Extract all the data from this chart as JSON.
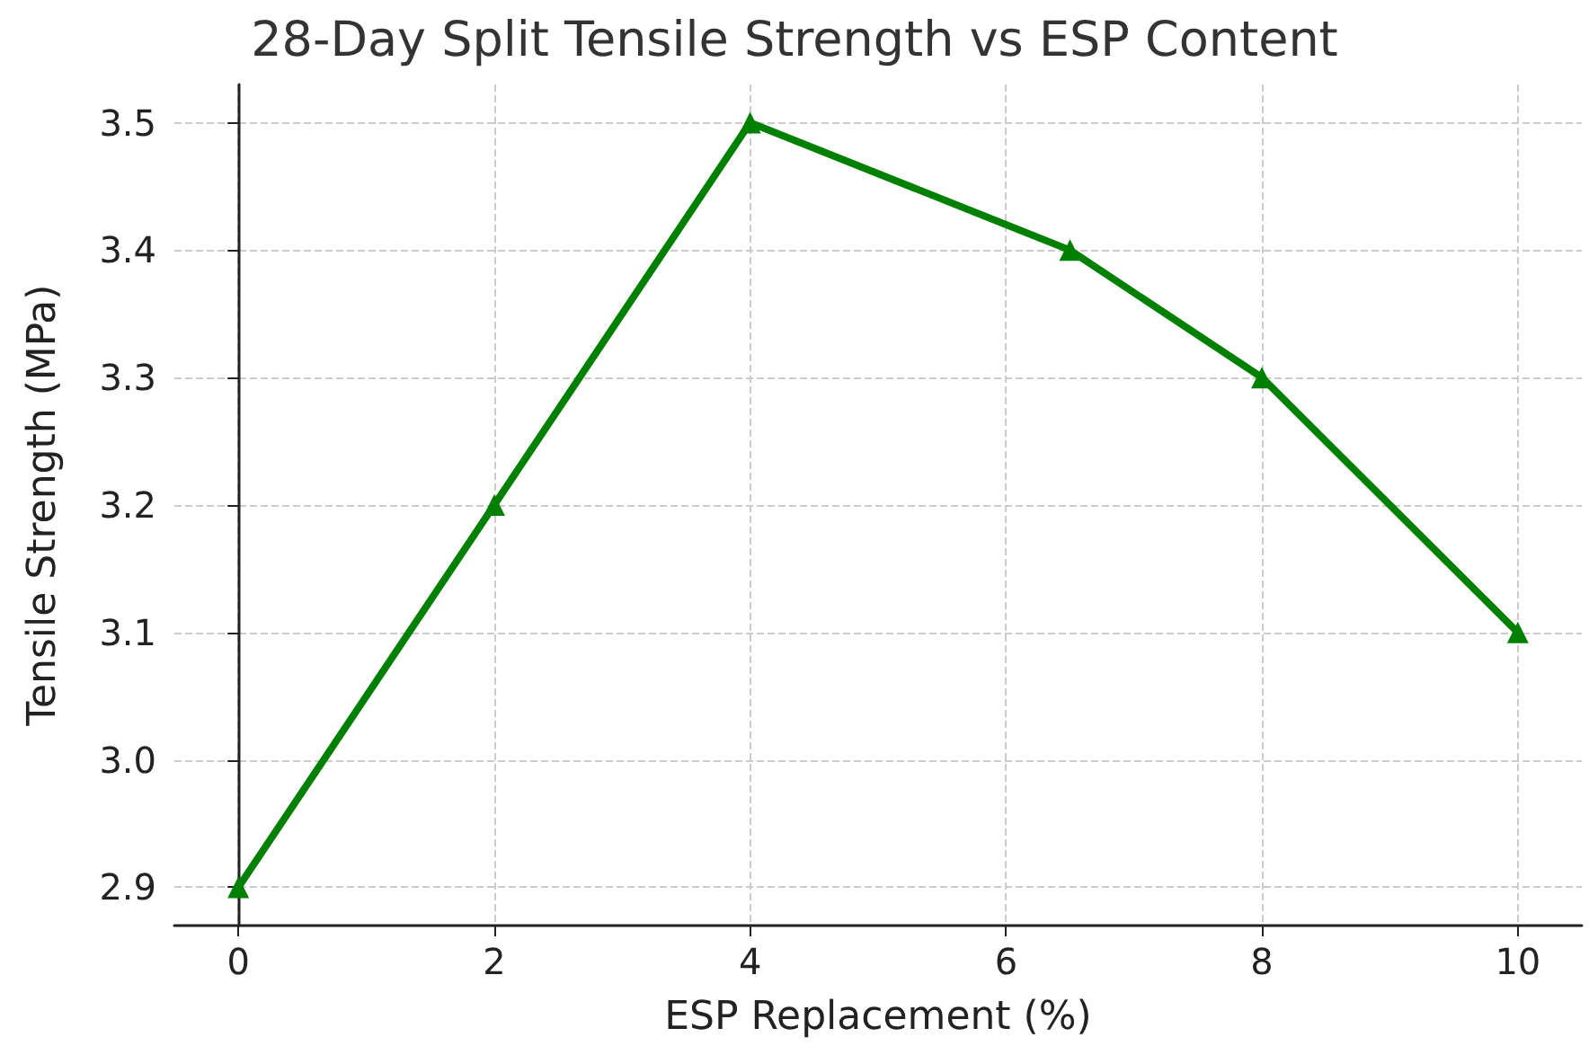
{
  "chart_data": {
    "type": "line",
    "title": "28-Day Split Tensile Strength vs ESP Content",
    "xlabel": "ESP Replacement (%)",
    "ylabel": "Tensile Strength (MPa)",
    "x": [
      0,
      2,
      4,
      6.5,
      8,
      10
    ],
    "series": [
      {
        "color": "#008000",
        "values": [
          2.9,
          3.2,
          3.5,
          3.4,
          3.3,
          3.1
        ]
      }
    ],
    "xlim": [
      -0.5,
      10.5
    ],
    "xticks": [
      0,
      2,
      4,
      6,
      8,
      10
    ],
    "ylim": [
      2.87,
      3.53
    ],
    "yticks": [
      2.9,
      {
        "value": 3,
        "label": "3.0"
      },
      3.1,
      3.2,
      3.3,
      3.4,
      3.5
    ],
    "grid": true,
    "marker": "triangle",
    "line_style": "solid"
  }
}
